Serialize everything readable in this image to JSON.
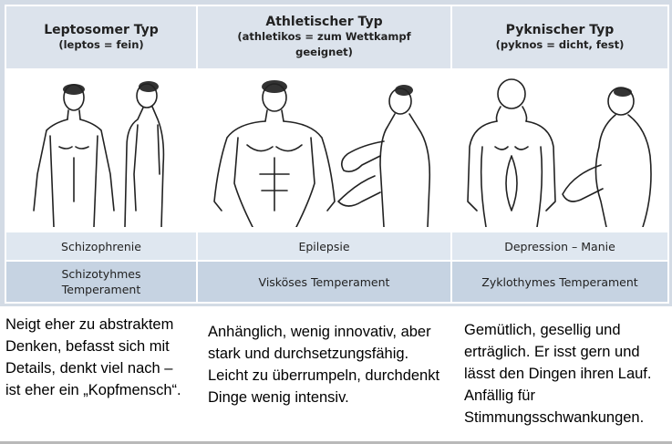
{
  "types": [
    {
      "title": "Leptosomer Typ",
      "subtitle": "(leptos = fein)",
      "illness": "Schizophrenie",
      "temperament": "Schizotyhmes Temperament",
      "description": "Neigt eher zu abstraktem Denken, befasst sich mit Details, denkt viel nach – ist eher ein „Kopfmensch“.",
      "illustration": "slender-figure-illustration"
    },
    {
      "title": "Athletischer Typ",
      "subtitle": "(athletikos = zum Wettkampf geeignet)",
      "illness": "Epilepsie",
      "temperament": "Visköses Temperament",
      "description": "Anhänglich, wenig innovativ, aber stark und durchsetzungsfähig. Leicht zu überrumpeln, durchdenkt Dinge wenig intensiv.",
      "illustration": "athletic-figure-illustration"
    },
    {
      "title": "Pyknischer Typ",
      "subtitle": "(pyknos = dicht, fest)",
      "illness": "Depression – Manie",
      "temperament": "Zyklothymes Temperament",
      "description": "Gemütlich, gesellig und erträglich. Er isst gern und lässt den Dingen ihren Lauf. Anfällig für Stimmungsschwankungen.",
      "illustration": "stocky-figure-illustration"
    }
  ],
  "colors": {
    "header_bg": "#dce3ec",
    "row1_bg": "#dfe7f0",
    "row2_bg": "#c6d3e2",
    "frame_bg": "#d3dbe5"
  }
}
